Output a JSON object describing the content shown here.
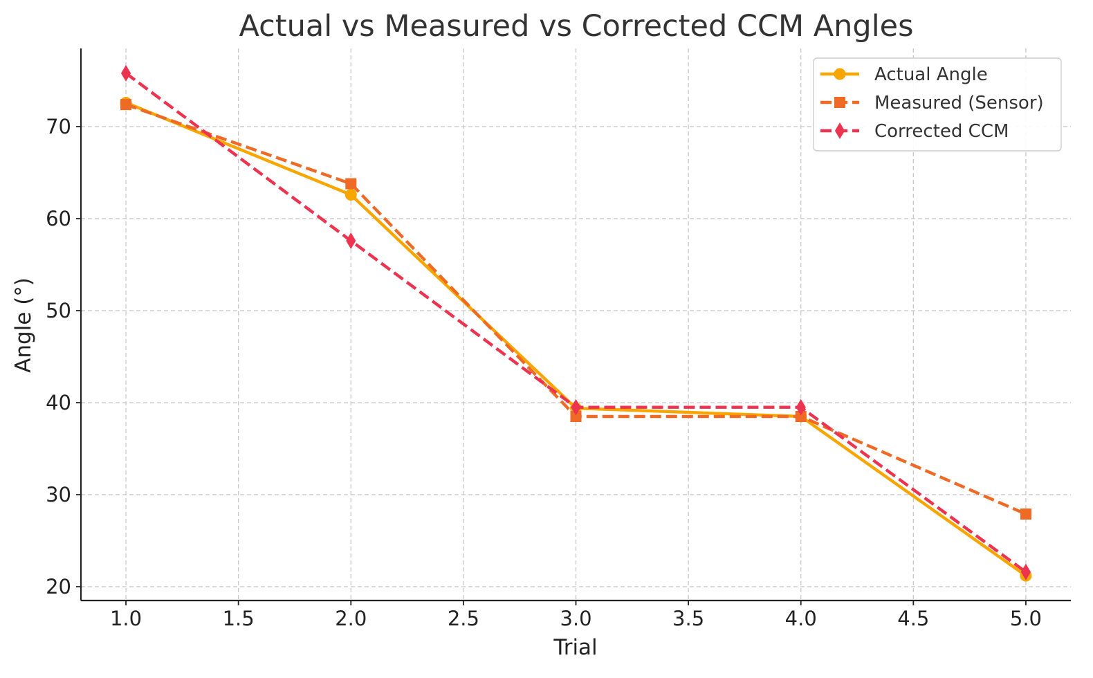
{
  "chart_data": {
    "type": "line",
    "title": "Actual vs Measured vs Corrected CCM Angles",
    "xlabel": "Trial",
    "ylabel": "Angle (°)",
    "xlim": [
      0.8,
      5.2
    ],
    "ylim": [
      18.5,
      78.5
    ],
    "xticks": [
      1.0,
      1.5,
      2.0,
      2.5,
      3.0,
      3.5,
      4.0,
      4.5,
      5.0
    ],
    "xtick_labels": [
      "1.0",
      "1.5",
      "2.0",
      "2.5",
      "3.0",
      "3.5",
      "4.0",
      "4.5",
      "5.0"
    ],
    "yticks": [
      20,
      30,
      40,
      50,
      60,
      70
    ],
    "ytick_labels": [
      "20",
      "30",
      "40",
      "50",
      "60",
      "70"
    ],
    "grid": true,
    "legend_position": "top-right",
    "x": [
      1,
      2,
      3,
      4,
      5
    ],
    "series": [
      {
        "name": "Actual Angle",
        "values": [
          72.6,
          62.6,
          39.4,
          38.5,
          21.2
        ],
        "color": "#f7a600",
        "line_style": "solid",
        "marker": "circle"
      },
      {
        "name": "Measured (Sensor)",
        "values": [
          72.4,
          63.8,
          38.5,
          38.5,
          27.9
        ],
        "color": "#ef6a25",
        "line_style": "dashed",
        "marker": "square"
      },
      {
        "name": "Corrected CCM",
        "values": [
          75.8,
          57.6,
          39.5,
          39.5,
          21.6
        ],
        "color": "#ec3350",
        "line_style": "dashed",
        "marker": "diamond"
      }
    ]
  }
}
